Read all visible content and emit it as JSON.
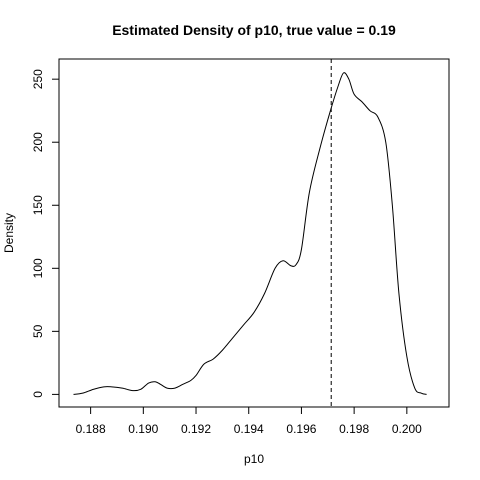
{
  "chart_data": {
    "type": "line",
    "title": "Estimated Density of p10, true value = 0.19",
    "xlabel": "p10",
    "ylabel": "Density",
    "xlim": [
      0.1868,
      0.2016
    ],
    "ylim": [
      -10,
      266
    ],
    "grid": false,
    "legend": "none",
    "x_ticks": [
      0.188,
      0.19,
      0.192,
      0.194,
      0.196,
      0.198,
      0.2
    ],
    "x_tick_labels": [
      "0.188",
      "0.190",
      "0.192",
      "0.194",
      "0.196",
      "0.198",
      "0.200"
    ],
    "y_ticks": [
      0,
      50,
      100,
      150,
      200,
      250
    ],
    "y_tick_labels": [
      "0",
      "50",
      "100",
      "150",
      "200",
      "250"
    ],
    "reference_line": {
      "x": 0.19713,
      "style": "dashed"
    },
    "series": [
      {
        "x": [
          0.18735,
          0.1877,
          0.1881,
          0.1885,
          0.1888,
          0.1892,
          0.1896,
          0.1899,
          0.1902,
          0.19045,
          0.19065,
          0.1909,
          0.1912,
          0.1915,
          0.1918,
          0.192,
          0.1923,
          0.19265,
          0.193,
          0.1934,
          0.1938,
          0.1942,
          0.1946,
          0.195,
          0.1953,
          0.1956,
          0.1958,
          0.196,
          0.1963,
          0.1967,
          0.1971,
          0.1974,
          0.1976,
          0.1978,
          0.198,
          0.1983,
          0.1986,
          0.1989,
          0.1992,
          0.19945,
          0.1997,
          0.2,
          0.2003,
          0.20055,
          0.20075
        ],
        "y": [
          0,
          1,
          4,
          6,
          6,
          5,
          3,
          4,
          9,
          10,
          8,
          5,
          5,
          8,
          11,
          15,
          24,
          28,
          35,
          45,
          55,
          65,
          80,
          100,
          106,
          102,
          103,
          115,
          160,
          195,
          225,
          245,
          255,
          250,
          238,
          232,
          225,
          220,
          200,
          150,
          80,
          30,
          5,
          1,
          0
        ]
      }
    ]
  }
}
